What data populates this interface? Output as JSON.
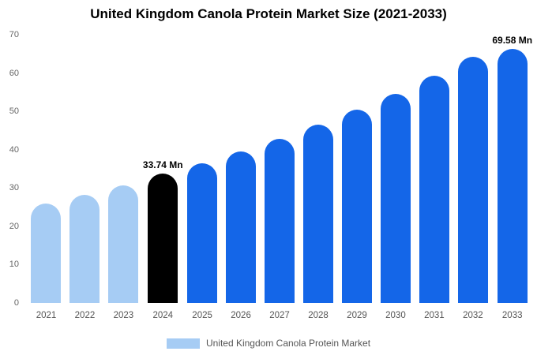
{
  "title": "United Kingdom Canola Protein Market Size (2021-2033)",
  "legend": {
    "label": "United Kingdom Canola Protein Market"
  },
  "colors": {
    "light_blue": "#a6ccf4",
    "primary_blue": "#1466e8",
    "highlight_black": "#000000",
    "axis_text": "#666666",
    "background": "#ffffff"
  },
  "chart_data": {
    "type": "bar",
    "title": "United Kingdom Canola Protein Market Size (2021-2033)",
    "categories": [
      "2021",
      "2022",
      "2023",
      "2024",
      "2025",
      "2026",
      "2027",
      "2028",
      "2029",
      "2030",
      "2031",
      "2032",
      "2033"
    ],
    "values": [
      26,
      28.2,
      30.6,
      33.74,
      36.5,
      39.6,
      42.9,
      46.5,
      50.4,
      54.6,
      59.2,
      64.2,
      69.58
    ],
    "bar_colors": [
      "#a6ccf4",
      "#a6ccf4",
      "#a6ccf4",
      "#000000",
      "#1466e8",
      "#1466e8",
      "#1466e8",
      "#1466e8",
      "#1466e8",
      "#1466e8",
      "#1466e8",
      "#1466e8",
      "#1466e8"
    ],
    "annotations": [
      {
        "index": 3,
        "text": "33.74 Mn"
      },
      {
        "index": 12,
        "text": "69.58 Mn"
      }
    ],
    "xlabel": "",
    "ylabel": "",
    "ylim": [
      0,
      70
    ],
    "yticks": [
      0,
      10,
      20,
      30,
      40,
      50,
      60,
      70
    ],
    "grid": false,
    "legend_position": "bottom-center"
  }
}
